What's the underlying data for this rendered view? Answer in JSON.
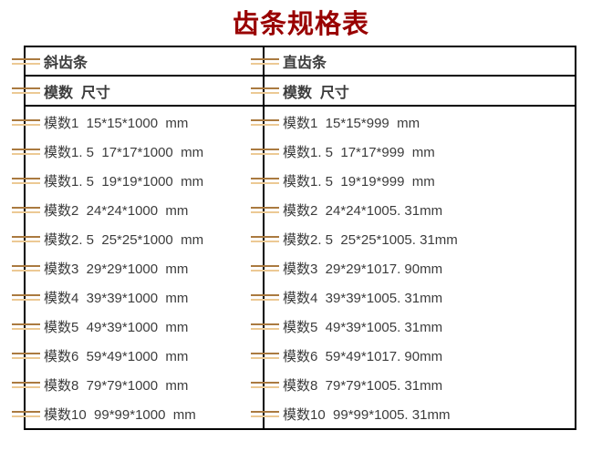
{
  "page": {
    "title": "齿条规格表",
    "title_color": "#990000",
    "background_color": "#ffffff"
  },
  "table": {
    "border_color": "#000000",
    "text_color": "#3c3c3c",
    "marker_icon": {
      "name": "double-dash-icon",
      "top_color": "#aa7a40",
      "bottom_color": "#ecc994"
    },
    "left_column": {
      "header": "斜齿条",
      "subheader": "模数  尺寸",
      "rows": [
        "模数1  15*15*1000  mm",
        "模数1. 5  17*17*1000  mm",
        "模数1. 5  19*19*1000  mm",
        "模数2  24*24*1000  mm",
        "模数2. 5  25*25*1000  mm",
        "模数3  29*29*1000  mm",
        "模数4  39*39*1000  mm",
        "模数5  49*39*1000  mm",
        "模数6  59*49*1000  mm",
        "模数8  79*79*1000  mm",
        "模数10  99*99*1000  mm"
      ]
    },
    "right_column": {
      "header": "直齿条",
      "subheader": "模数  尺寸",
      "rows": [
        "模数1  15*15*999  mm",
        "模数1. 5  17*17*999  mm",
        "模数1. 5  19*19*999  mm",
        "模数2  24*24*1005. 31mm",
        "模数2. 5  25*25*1005. 31mm",
        "模数3  29*29*1017. 90mm",
        "模数4  39*39*1005. 31mm",
        "模数5  49*39*1005. 31mm",
        "模数6  59*49*1017. 90mm",
        "模数8  79*79*1005. 31mm",
        "模数10  99*99*1005. 31mm"
      ]
    }
  }
}
